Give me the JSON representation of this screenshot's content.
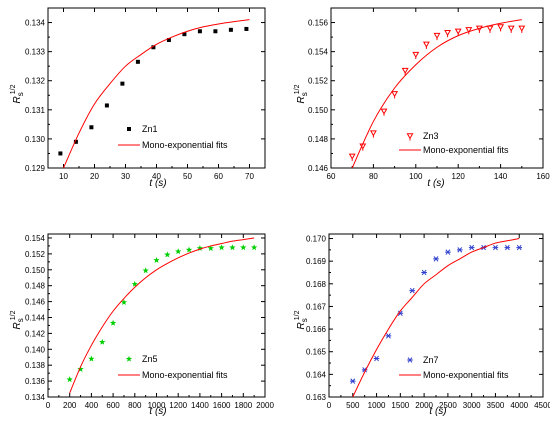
{
  "chart_data": [
    {
      "type": "scatter",
      "xlim": [
        5,
        75
      ],
      "ylim": [
        0.129,
        0.1345
      ],
      "xticks": [
        10,
        20,
        30,
        40,
        50,
        60,
        70
      ],
      "yticks": [
        0.129,
        0.13,
        0.131,
        0.132,
        0.133,
        0.134
      ],
      "ytick_labels": [
        "0.129",
        "0.130",
        "0.131",
        "0.132",
        "0.133",
        "0.134"
      ],
      "xlabel": "t  (s)",
      "ylabel": "R",
      "ylabel_sub": "s",
      "ylabel_sup": "1/2",
      "legend_position": "center-right",
      "series": [
        {
          "name": "Zn1",
          "marker": "square",
          "color": "#000000",
          "x": [
            9,
            14,
            19,
            24,
            29,
            34,
            39,
            44,
            49,
            54,
            59,
            64,
            69
          ],
          "y": [
            0.1295,
            0.1299,
            0.1304,
            0.13115,
            0.1319,
            0.13265,
            0.13315,
            0.1334,
            0.1336,
            0.1337,
            0.1337,
            0.13375,
            0.13378
          ]
        },
        {
          "name": "Mono-exponential fits",
          "type": "line",
          "color": "#ff0000",
          "x": [
            10,
            15,
            20,
            25,
            30,
            35,
            40,
            45,
            50,
            55,
            60,
            65,
            70
          ],
          "y": [
            0.129,
            0.1302,
            0.1312,
            0.1319,
            0.1325,
            0.1329,
            0.13325,
            0.1335,
            0.1337,
            0.13385,
            0.13395,
            0.13403,
            0.1341
          ]
        }
      ]
    },
    {
      "type": "scatter",
      "xlim": [
        60,
        160
      ],
      "ylim": [
        0.146,
        0.157
      ],
      "xticks": [
        60,
        80,
        100,
        120,
        140,
        160
      ],
      "yticks": [
        0.146,
        0.148,
        0.15,
        0.152,
        0.154,
        0.156
      ],
      "ytick_labels": [
        "0.146",
        "0.148",
        "0.150",
        "0.152",
        "0.154",
        "0.156"
      ],
      "xlabel": "t  (s)",
      "ylabel": "R",
      "ylabel_sub": "s",
      "ylabel_sup": "1/2",
      "legend_position": "center-right",
      "series": [
        {
          "name": "Zn3",
          "marker": "tri-down",
          "color": "#ff0000",
          "x": [
            70,
            75,
            80,
            85,
            90,
            95,
            100,
            105,
            110,
            115,
            120,
            125,
            130,
            135,
            140,
            145,
            150
          ],
          "y": [
            0.1468,
            0.1475,
            0.1484,
            0.1499,
            0.1511,
            0.1527,
            0.1538,
            0.1545,
            0.1551,
            0.1553,
            0.1554,
            0.1555,
            0.1556,
            0.1556,
            0.1557,
            0.1556,
            0.1556
          ]
        },
        {
          "name": "Mono-exponential fits",
          "type": "line",
          "color": "#ff0000",
          "x": [
            70,
            80,
            90,
            100,
            110,
            120,
            130,
            140,
            150
          ],
          "y": [
            0.146,
            0.1492,
            0.1515,
            0.1531,
            0.1543,
            0.1551,
            0.1556,
            0.15595,
            0.1562
          ]
        }
      ]
    },
    {
      "type": "scatter",
      "xlim": [
        0,
        2000
      ],
      "ylim": [
        0.134,
        0.1545
      ],
      "xticks": [
        0,
        200,
        400,
        600,
        800,
        1000,
        1200,
        1400,
        1600,
        1800,
        2000
      ],
      "yticks": [
        0.134,
        0.136,
        0.138,
        0.14,
        0.142,
        0.144,
        0.146,
        0.148,
        0.15,
        0.152,
        0.154
      ],
      "ytick_labels": [
        "0.134",
        "0.136",
        "0.138",
        "0.140",
        "0.142",
        "0.144",
        "0.146",
        "0.148",
        "0.150",
        "0.152",
        "0.154"
      ],
      "xlabel": "t  (s)",
      "ylabel": "R",
      "ylabel_sub": "s",
      "ylabel_sup": "1/2",
      "legend_position": "center-right",
      "series": [
        {
          "name": "Zn5",
          "marker": "star",
          "color": "#00d000",
          "x": [
            200,
            300,
            400,
            500,
            600,
            700,
            800,
            900,
            1000,
            1100,
            1200,
            1300,
            1400,
            1500,
            1600,
            1700,
            1800,
            1900
          ],
          "y": [
            0.1362,
            0.1375,
            0.1388,
            0.1409,
            0.1433,
            0.1459,
            0.1482,
            0.1499,
            0.1512,
            0.1519,
            0.1523,
            0.1525,
            0.1527,
            0.1527,
            0.1528,
            0.1528,
            0.1528,
            0.1528
          ]
        },
        {
          "name": "Mono-exponential fits",
          "type": "line",
          "color": "#ff0000",
          "x": [
            200,
            300,
            400,
            500,
            600,
            700,
            800,
            900,
            1000,
            1100,
            1200,
            1300,
            1400,
            1500,
            1600,
            1700,
            1800,
            1900
          ],
          "y": [
            0.1345,
            0.1378,
            0.1405,
            0.1428,
            0.1448,
            0.1464,
            0.1478,
            0.149,
            0.15,
            0.1508,
            0.1515,
            0.1521,
            0.1526,
            0.153,
            0.1533,
            0.1536,
            0.1538,
            0.154
          ]
        }
      ]
    },
    {
      "type": "scatter",
      "xlim": [
        0,
        4500
      ],
      "ylim": [
        0.163,
        0.1702
      ],
      "xticks": [
        0,
        500,
        1000,
        1500,
        2000,
        2500,
        3000,
        3500,
        4000,
        4500
      ],
      "yticks": [
        0.163,
        0.164,
        0.165,
        0.166,
        0.167,
        0.168,
        0.169,
        0.17
      ],
      "ytick_labels": [
        "0.163",
        "0.164",
        "0.165",
        "0.166",
        "0.167",
        "0.168",
        "0.169",
        "0.170"
      ],
      "xlabel": "t  (s)",
      "ylabel": "R",
      "ylabel_sub": "s",
      "ylabel_sup": "1/2",
      "legend_position": "center-right",
      "series": [
        {
          "name": "Zn7",
          "marker": "asterisk",
          "color": "#3040d0",
          "x": [
            500,
            750,
            1000,
            1250,
            1500,
            1750,
            2000,
            2250,
            2500,
            2750,
            3000,
            3250,
            3500,
            3750,
            4000
          ],
          "y": [
            0.1637,
            0.1642,
            0.1647,
            0.1657,
            0.1667,
            0.1677,
            0.1685,
            0.1691,
            0.1694,
            0.1695,
            0.1696,
            0.1696,
            0.1696,
            0.1696,
            0.1696
          ]
        },
        {
          "name": "Mono-exponential fits",
          "type": "line",
          "color": "#ff0000",
          "x": [
            500,
            750,
            1000,
            1250,
            1500,
            1750,
            2000,
            2250,
            2500,
            2750,
            3000,
            3250,
            3500,
            3750,
            4000
          ],
          "y": [
            0.163,
            0.1641,
            0.1651,
            0.166,
            0.1668,
            0.1674,
            0.168,
            0.1684,
            0.1688,
            0.1691,
            0.1694,
            0.1696,
            0.1698,
            0.1699,
            0.17
          ]
        }
      ]
    }
  ]
}
